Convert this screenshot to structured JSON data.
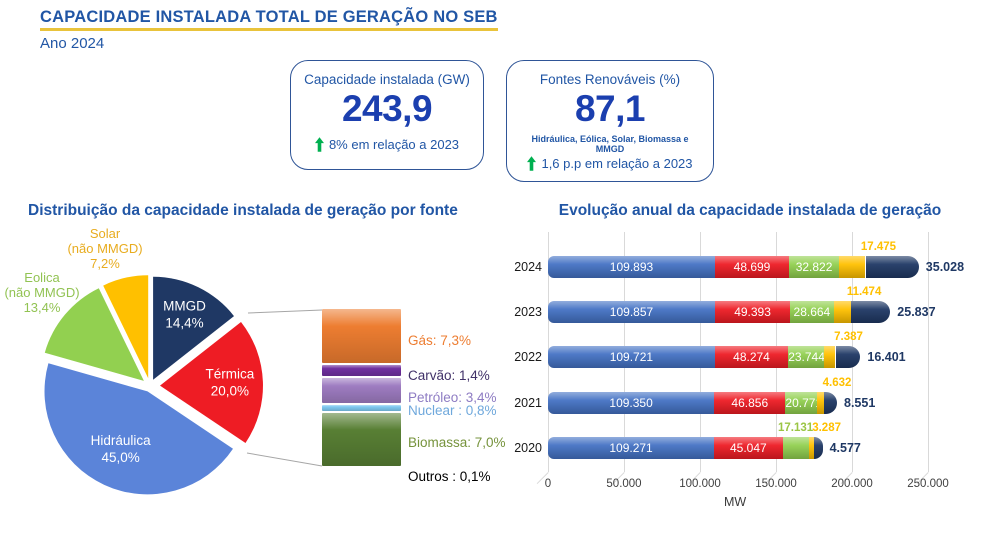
{
  "header": {
    "title": "CAPACIDADE INSTALADA TOTAL DE GERAÇÃO NO SEB",
    "subtitle": "Ano 2024"
  },
  "kpis": [
    {
      "title": "Capacidade instalada (GW)",
      "value": "243,9",
      "note": "",
      "delta": "8% em relação a 2023"
    },
    {
      "title": "Fontes Renováveis (%)",
      "value": "87,1",
      "note": "Hidráulica, Eólica, Solar, Biomassa e MMGD",
      "delta": "1,6 p.p em relação a 2023"
    }
  ],
  "colors": {
    "title_blue": "#2156A5",
    "value_blue": "#1B3FAF",
    "underline_gold": "#E9C33B",
    "green_arrow": "#00B050"
  },
  "chart_data": [
    {
      "type": "pie",
      "title": "Distribuição da capacidade instalada de geração por fonte",
      "unit": "%",
      "slices": [
        {
          "name": "MMGD",
          "value": 14.4,
          "pct_label": "14,4%",
          "label_lines": [
            "MMGD",
            "14,4%"
          ],
          "color": "#1F3864",
          "text_color": "#FFFFFF",
          "label_pos": "inside",
          "explode": 7
        },
        {
          "name": "Térmica",
          "value": 20.0,
          "pct_label": "20,0%",
          "label_lines": [
            "Térmica",
            "20,0%"
          ],
          "color": "#EE1C24",
          "text_color": "#FFFFFF",
          "label_pos": "inside",
          "explode": 10
        },
        {
          "name": "Hidráulica",
          "value": 45.0,
          "pct_label": "45,0%",
          "label_lines": [
            "Hidráulica",
            "45,0%"
          ],
          "color": "#5B84D9",
          "text_color": "#FFFFFF",
          "label_pos": "inside",
          "explode": 6
        },
        {
          "name": "Eolica (não MMGD)",
          "value": 13.4,
          "pct_label": "13,4%",
          "label_lines": [
            "Eolica",
            "(não MMGD)",
            "13,4%"
          ],
          "color": "#92D050",
          "text_color": "#92C353",
          "label_pos": "outside",
          "explode": 8
        },
        {
          "name": "Solar (não MMGD)",
          "value": 7.2,
          "pct_label": "7,2%",
          "label_lines": [
            "Solar",
            "(não MMGD)",
            "7,2%"
          ],
          "color": "#FFC000",
          "text_color": "#E8AC1F",
          "label_pos": "outside",
          "explode": 8
        }
      ],
      "breakdown": [
        {
          "name": "Gás",
          "label": "Gás: 7,3%",
          "value": 7.3,
          "color": "#ED7D31",
          "text_color": "#ED7D31"
        },
        {
          "name": "Carvão",
          "label": "Carvão: 1,4%",
          "value": 1.4,
          "color": "#7030A0",
          "text_color": "#403168"
        },
        {
          "name": "Petróleo",
          "label": "Petróleo: 3,4%",
          "value": 3.4,
          "color": "#9E7CC1",
          "text_color": "#8E7CC3"
        },
        {
          "name": "Nuclear",
          "label": "Nuclear : 0,8%",
          "value": 0.8,
          "color": "#7EC8F0",
          "text_color": "#6FA8DC"
        },
        {
          "name": "Biomassa",
          "label": "Biomassa: 7,0%",
          "value": 7.0,
          "color": "#587F34",
          "text_color": "#76933C"
        },
        {
          "name": "Outros",
          "label": "Outros : 0,1%",
          "value": 0.1,
          "color": "#FFFFFF",
          "text_color": "#000000"
        }
      ]
    },
    {
      "type": "bar",
      "title": "Evolução anual da capacidade instalada de geração",
      "orientation": "horizontal",
      "stacked": true,
      "categories": [
        "2024",
        "2023",
        "2022",
        "2021",
        "2020"
      ],
      "series": [
        {
          "name": "Hidráulica",
          "color": "#4472C4",
          "values": [
            109893,
            109857,
            109721,
            109350,
            109271
          ]
        },
        {
          "name": "Térmica",
          "color": "#EE1C24",
          "values": [
            48699,
            49393,
            48274,
            46856,
            45047
          ]
        },
        {
          "name": "Eólica",
          "color": "#92D050",
          "values": [
            32822,
            28664,
            23744,
            20771,
            17131
          ]
        },
        {
          "name": "Solar",
          "color": "#FFC000",
          "values": [
            17475,
            11474,
            7387,
            4632,
            3287
          ]
        },
        {
          "name": "MMGD",
          "color": "#1F3864",
          "values": [
            35028,
            25837,
            16401,
            8551,
            4577
          ]
        }
      ],
      "xlim": [
        0,
        250000
      ],
      "xtick_labels": [
        "0",
        "50.000",
        "100.000",
        "150.000",
        "200.000",
        "250.000"
      ],
      "xlabel": "MW",
      "grid": true,
      "legend": "none"
    }
  ]
}
